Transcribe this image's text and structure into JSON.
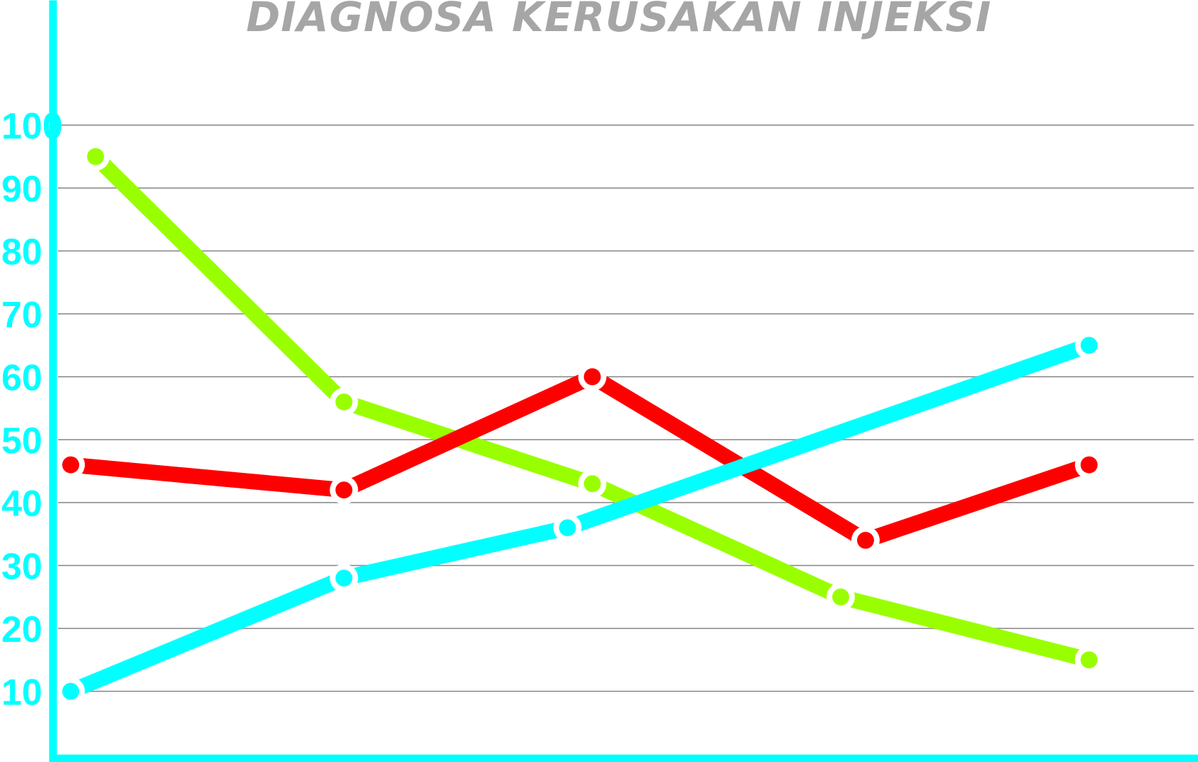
{
  "chart_data": {
    "type": "line",
    "title": "DIAGNOSA KERUSAKAN INJEKSI",
    "xlabel": "",
    "ylabel": "",
    "ylim": [
      0,
      100
    ],
    "yticks": [
      10,
      20,
      30,
      40,
      50,
      60,
      70,
      80,
      90,
      100
    ],
    "grid": true,
    "legend": "none",
    "colors": {
      "axis": "#00ffff",
      "grid": "#a3a3a3",
      "title": "#a6a6a6"
    },
    "series": [
      {
        "color": "#99ff00",
        "x": [
          0.1,
          1.1,
          2.1,
          3.1,
          4.1
        ],
        "values": [
          95,
          56,
          43,
          25,
          15
        ]
      },
      {
        "color": "#ff0000",
        "x": [
          0.0,
          1.1,
          2.1,
          3.2,
          4.1
        ],
        "values": [
          46,
          42,
          60,
          34,
          46
        ]
      },
      {
        "color": "#00ffff",
        "x": [
          0.0,
          1.1,
          2.0,
          4.1
        ],
        "values": [
          10,
          28,
          36,
          65
        ]
      }
    ],
    "xlim": [
      0,
      4.1
    ]
  }
}
